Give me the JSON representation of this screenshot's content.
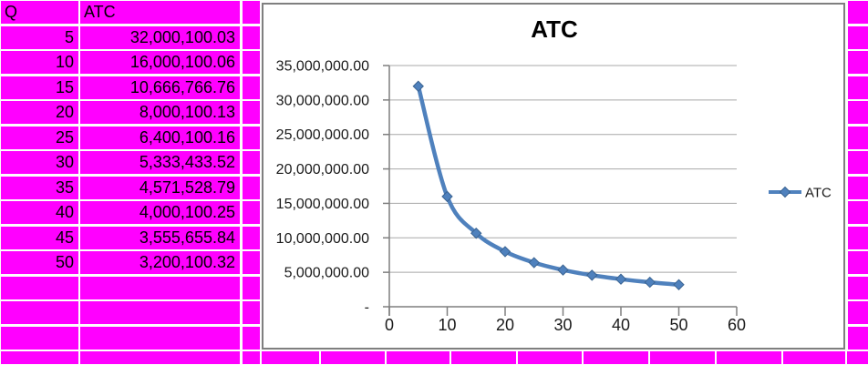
{
  "table": {
    "headers": [
      "Q",
      "ATC"
    ],
    "rows": [
      [
        "5",
        "32,000,100.03"
      ],
      [
        "10",
        "16,000,100.06"
      ],
      [
        "15",
        "10,666,766.76"
      ],
      [
        "20",
        "8,000,100.13"
      ],
      [
        "25",
        "6,400,100.16"
      ],
      [
        "30",
        "5,333,433.52"
      ],
      [
        "35",
        "4,571,528.79"
      ],
      [
        "40",
        "4,000,100.25"
      ],
      [
        "45",
        "3,555,655.84"
      ],
      [
        "50",
        "3,200,100.32"
      ]
    ],
    "empty_rows": 4
  },
  "chart_data": {
    "type": "line",
    "title": "ATC",
    "x": [
      5,
      10,
      15,
      20,
      25,
      30,
      35,
      40,
      45,
      50
    ],
    "series": [
      {
        "name": "ATC",
        "values": [
          32000100.03,
          16000100.06,
          10666766.76,
          8000100.13,
          6400100.16,
          5333433.52,
          4571528.79,
          4000100.25,
          3555655.84,
          3200100.32
        ]
      }
    ],
    "xlim": [
      0,
      60
    ],
    "ylim": [
      0,
      35000000
    ],
    "x_tick_labels": [
      "0",
      "10",
      "20",
      "30",
      "40",
      "50",
      "60"
    ],
    "x_ticks": [
      0,
      10,
      20,
      30,
      40,
      50,
      60
    ],
    "y_tick_labels": [
      "-",
      "5,000,000.00",
      "10,000,000.00",
      "15,000,000.00",
      "20,000,000.00",
      "25,000,000.00",
      "30,000,000.00",
      "35,000,000.00"
    ],
    "grid": true,
    "legend": {
      "label": "ATC",
      "position": "right",
      "marker": "diamond"
    },
    "marker": "diamond"
  },
  "colors": {
    "cell_fill": "#FF00FF",
    "chart_bg": "#ffffff",
    "chart_border": "#7f7f7f",
    "axis": "#7f7f7f",
    "chart_gridline": "#a8a8a8",
    "series": "#4F81BD",
    "marker_edge": "#3a6391",
    "text": "#1a1a1a"
  }
}
